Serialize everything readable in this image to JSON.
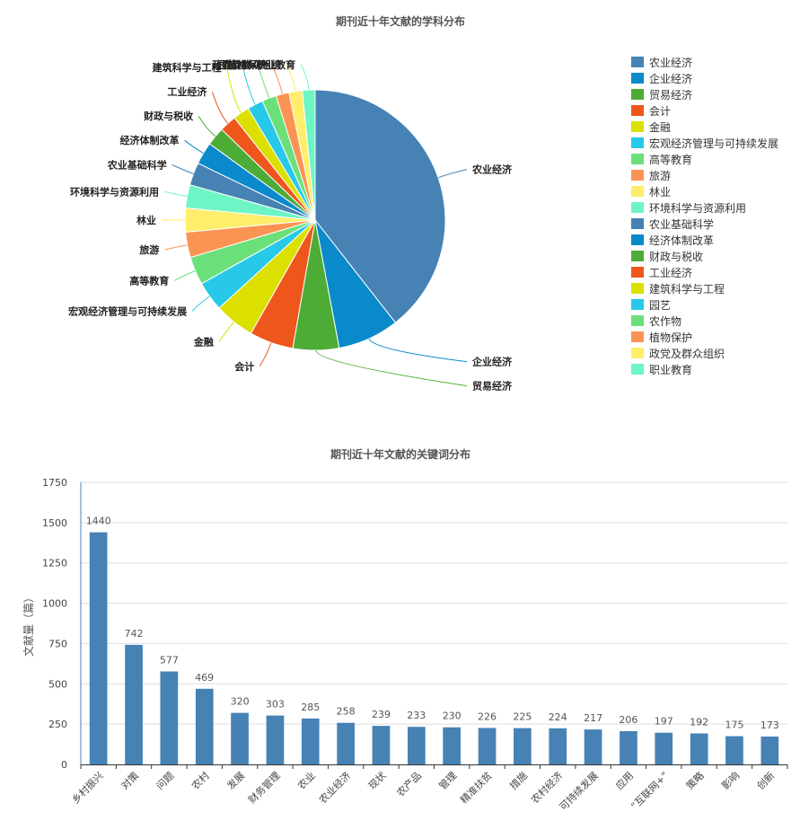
{
  "chart_data": [
    {
      "type": "pie",
      "title": "期刊近十年文献的学科分布",
      "legend_position": "right",
      "slices": [
        {
          "name": "农业经济",
          "value": 600,
          "color": "#4682b4"
        },
        {
          "name": "企业经济",
          "value": 116,
          "color": "#0a8acb"
        },
        {
          "name": "贸易经济",
          "value": 87,
          "color": "#4dac35"
        },
        {
          "name": "会计",
          "value": 83,
          "color": "#ee561c"
        },
        {
          "name": "金融",
          "value": 76,
          "color": "#dbe000"
        },
        {
          "name": "宏观经济管理与可持续发展",
          "value": 56,
          "color": "#28c8e8"
        },
        {
          "name": "高等教育",
          "value": 53,
          "color": "#6be07a"
        },
        {
          "name": "旅游",
          "value": 48,
          "color": "#fb9453"
        },
        {
          "name": "林业",
          "value": 45,
          "color": "#feee6b"
        },
        {
          "name": "环境科学与资源利用",
          "value": 44,
          "color": "#6ef5c6"
        },
        {
          "name": "农业基础科学",
          "value": 43,
          "color": "#4682b4"
        },
        {
          "name": "经济体制改革",
          "value": 42,
          "color": "#0a8acb"
        },
        {
          "name": "财政与税收",
          "value": 35,
          "color": "#4dac35"
        },
        {
          "name": "工业经济",
          "value": 32,
          "color": "#ee561c"
        },
        {
          "name": "建筑科学与工程",
          "value": 31,
          "color": "#dbe000"
        },
        {
          "name": "园艺",
          "value": 30,
          "color": "#28c8e8"
        },
        {
          "name": "农作物",
          "value": 27,
          "color": "#6be07a"
        },
        {
          "name": "植物保护",
          "value": 25,
          "color": "#fb9453"
        },
        {
          "name": "政党及群众组织",
          "value": 25,
          "color": "#feee6b"
        },
        {
          "name": "职业教育",
          "value": 24,
          "color": "#6ef5c6"
        }
      ]
    },
    {
      "type": "bar",
      "title": "期刊近十年文献的关键词分布",
      "ylabel": "文献量（篇）",
      "ylim": [
        0,
        1750
      ],
      "yticks": [
        0,
        250,
        500,
        750,
        1000,
        1250,
        1500,
        1750
      ],
      "grid": true,
      "bar_color": "#4682b4",
      "categories": [
        "乡村振兴",
        "对策",
        "问题",
        "农村",
        "发展",
        "财务管理",
        "农业",
        "农业经济",
        "现状",
        "农产品",
        "管理",
        "精准扶贫",
        "措施",
        "农村经济",
        "可持续发展",
        "应用",
        "“互联网+”",
        "策略",
        "影响",
        "创新"
      ],
      "values": [
        1440,
        742,
        577,
        469,
        320,
        303,
        285,
        258,
        239,
        233,
        230,
        226,
        225,
        224,
        217,
        206,
        197,
        192,
        175,
        173
      ]
    }
  ]
}
